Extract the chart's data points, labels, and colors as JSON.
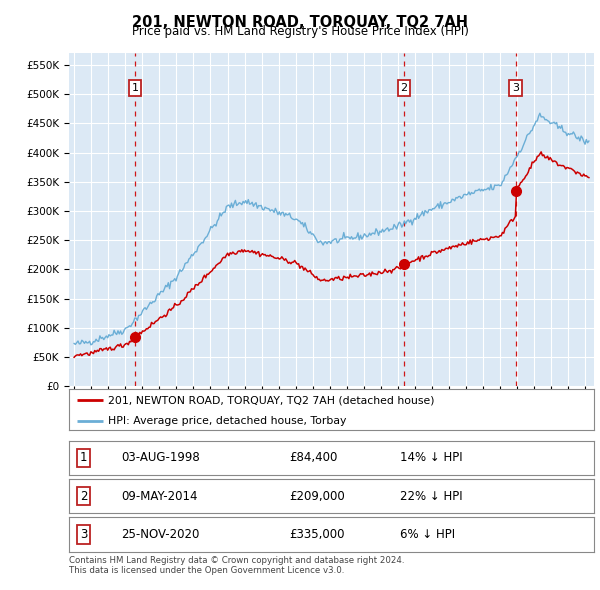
{
  "title": "201, NEWTON ROAD, TORQUAY, TQ2 7AH",
  "subtitle": "Price paid vs. HM Land Registry's House Price Index (HPI)",
  "ylabel_ticks": [
    "£0",
    "£50K",
    "£100K",
    "£150K",
    "£200K",
    "£250K",
    "£300K",
    "£350K",
    "£400K",
    "£450K",
    "£500K",
    "£550K"
  ],
  "ytick_values": [
    0,
    50000,
    100000,
    150000,
    200000,
    250000,
    300000,
    350000,
    400000,
    450000,
    500000,
    550000
  ],
  "ylim": [
    0,
    570000
  ],
  "xlim_start": 1994.7,
  "xlim_end": 2025.5,
  "background_color": "#dce9f5",
  "red_color": "#cc0000",
  "blue_color": "#6baed6",
  "sale_dates": [
    1998.583,
    2014.354,
    2020.898
  ],
  "sale_prices": [
    84400,
    209000,
    335000
  ],
  "sale_labels": [
    "1",
    "2",
    "3"
  ],
  "legend_line1": "201, NEWTON ROAD, TORQUAY, TQ2 7AH (detached house)",
  "legend_line2": "HPI: Average price, detached house, Torbay",
  "table_rows": [
    [
      "1",
      "03-AUG-1998",
      "£84,400",
      "14% ↓ HPI"
    ],
    [
      "2",
      "09-MAY-2014",
      "£209,000",
      "22% ↓ HPI"
    ],
    [
      "3",
      "25-NOV-2020",
      "£335,000",
      "6% ↓ HPI"
    ]
  ],
  "footer": "Contains HM Land Registry data © Crown copyright and database right 2024.\nThis data is licensed under the Open Government Licence v3.0.",
  "xtick_years": [
    1995,
    1996,
    1997,
    1998,
    1999,
    2000,
    2001,
    2002,
    2003,
    2004,
    2005,
    2006,
    2007,
    2008,
    2009,
    2010,
    2011,
    2012,
    2013,
    2014,
    2015,
    2016,
    2017,
    2018,
    2019,
    2020,
    2021,
    2022,
    2023,
    2024,
    2025
  ]
}
